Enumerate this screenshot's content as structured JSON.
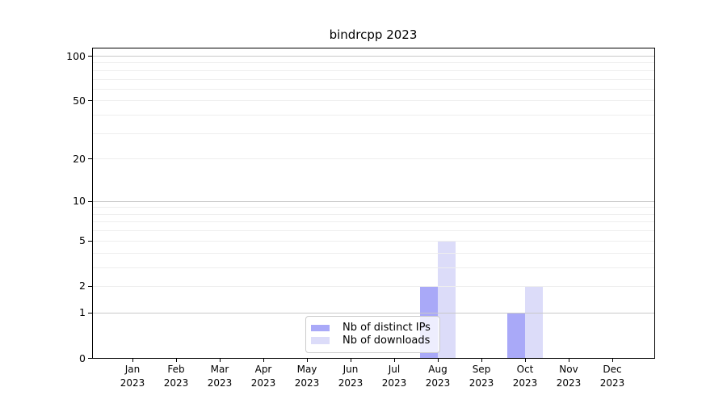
{
  "title": "bindrcpp 2023",
  "chart_data": {
    "type": "bar",
    "title": "bindrcpp 2023",
    "x": {
      "months": [
        "Jan",
        "Feb",
        "Mar",
        "Apr",
        "May",
        "Jun",
        "Jul",
        "Aug",
        "Sep",
        "Oct",
        "Nov",
        "Dec"
      ],
      "year": "2023"
    },
    "y_axis": {
      "scale": "log1p",
      "ticks": [
        0,
        1,
        2,
        5,
        10,
        20,
        50,
        100
      ],
      "max": 114,
      "major_gridlines": [
        1,
        10,
        100
      ],
      "minor_gridlines": [
        2,
        3,
        4,
        5,
        6,
        7,
        8,
        9,
        20,
        30,
        40,
        50,
        60,
        70,
        80,
        90
      ]
    },
    "series": [
      {
        "name": "Nb of distinct IPs",
        "color": "#a9a9f8",
        "values": [
          0,
          0,
          0,
          0,
          0,
          0,
          0,
          2,
          0,
          1,
          0,
          0
        ]
      },
      {
        "name": "Nb of downloads",
        "color": "#dcdcf9",
        "values": [
          0,
          0,
          0,
          0,
          0,
          0,
          0,
          5,
          0,
          2,
          0,
          0
        ]
      }
    ],
    "legend_position": "lower center",
    "grid": true,
    "colors": {
      "grid_major": "#c9c9c9",
      "grid_minor": "#eeeeee",
      "spine": "#000000",
      "text": "#000000",
      "legend_border": "#cccccc"
    }
  }
}
